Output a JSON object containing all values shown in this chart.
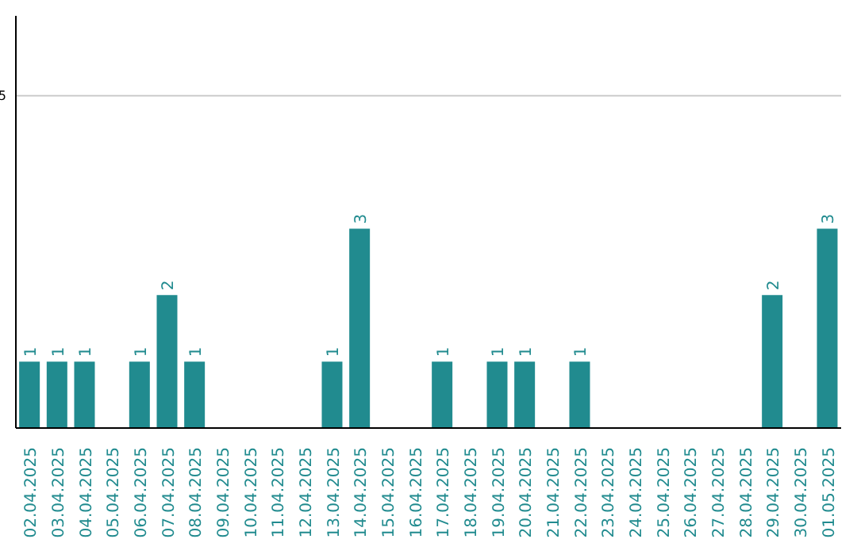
{
  "chart_data": {
    "type": "bar",
    "categories": [
      "02.04.2025",
      "03.04.2025",
      "04.04.2025",
      "05.04.2025",
      "06.04.2025",
      "07.04.2025",
      "08.04.2025",
      "09.04.2025",
      "10.04.2025",
      "11.04.2025",
      "12.04.2025",
      "13.04.2025",
      "14.04.2025",
      "15.04.2025",
      "16.04.2025",
      "17.04.2025",
      "18.04.2025",
      "19.04.2025",
      "20.04.2025",
      "21.04.2025",
      "22.04.2025",
      "23.04.2025",
      "24.04.2025",
      "25.04.2025",
      "26.04.2025",
      "27.04.2025",
      "28.04.2025",
      "29.04.2025",
      "30.04.2025",
      "01.05.2025"
    ],
    "values": [
      1,
      1,
      1,
      0,
      1,
      2,
      1,
      0,
      0,
      0,
      0,
      1,
      3,
      0,
      0,
      1,
      0,
      1,
      1,
      0,
      1,
      0,
      0,
      0,
      0,
      0,
      0,
      2,
      0,
      3
    ],
    "value_labels": [
      "1",
      "1",
      "1",
      null,
      "1",
      "2",
      "1",
      null,
      null,
      null,
      null,
      "1",
      "3",
      null,
      null,
      "1",
      null,
      "1",
      "1",
      null,
      "1",
      null,
      null,
      null,
      null,
      null,
      null,
      "2",
      null,
      "3"
    ],
    "color": "#218b8f",
    "ylim": [
      0,
      6.2
    ],
    "yticks": [
      5
    ],
    "grid": "y"
  }
}
